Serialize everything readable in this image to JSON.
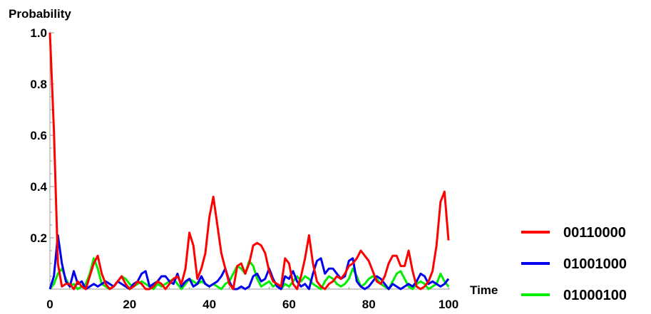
{
  "chart_data": {
    "type": "line",
    "title": "",
    "xlabel": "Time",
    "ylabel": "Probability",
    "xlim": [
      0,
      100
    ],
    "ylim": [
      0,
      1.0
    ],
    "x_ticks": [
      "0",
      "20",
      "40",
      "60",
      "80",
      "100"
    ],
    "y_ticks": [
      "0.2",
      "0.4",
      "0.6",
      "0.8",
      "1.0"
    ],
    "grid": false,
    "legend_position": "bottom-right",
    "x": [
      0,
      1,
      2,
      3,
      4,
      5,
      6,
      7,
      8,
      9,
      10,
      11,
      12,
      13,
      14,
      15,
      16,
      17,
      18,
      19,
      20,
      21,
      22,
      23,
      24,
      25,
      26,
      27,
      28,
      29,
      30,
      31,
      32,
      33,
      34,
      35,
      36,
      37,
      38,
      39,
      40,
      41,
      42,
      43,
      44,
      45,
      46,
      47,
      48,
      49,
      50,
      51,
      52,
      53,
      54,
      55,
      56,
      57,
      58,
      59,
      60,
      61,
      62,
      63,
      64,
      65,
      66,
      67,
      68,
      69,
      70,
      71,
      72,
      73,
      74,
      75,
      76,
      77,
      78,
      79,
      80,
      81,
      82,
      83,
      84,
      85,
      86,
      87,
      88,
      89,
      90,
      91,
      92,
      93,
      94,
      95,
      96,
      97,
      98,
      99,
      100
    ],
    "series": [
      {
        "name": "00110000",
        "color": "#ff0000",
        "values": [
          1.0,
          0.62,
          0.1,
          0.01,
          0.02,
          0.02,
          0.0,
          0.03,
          0.01,
          0.0,
          0.05,
          0.1,
          0.13,
          0.06,
          0.02,
          0.0,
          0.01,
          0.03,
          0.05,
          0.02,
          0.0,
          0.01,
          0.03,
          0.02,
          0.0,
          0.0,
          0.01,
          0.03,
          0.02,
          0.0,
          0.02,
          0.04,
          0.05,
          0.02,
          0.08,
          0.22,
          0.17,
          0.04,
          0.08,
          0.14,
          0.28,
          0.36,
          0.25,
          0.14,
          0.08,
          0.02,
          0.0,
          0.09,
          0.1,
          0.06,
          0.1,
          0.17,
          0.18,
          0.17,
          0.14,
          0.07,
          0.03,
          0.02,
          0.01,
          0.12,
          0.1,
          0.02,
          0.0,
          0.05,
          0.12,
          0.21,
          0.1,
          0.03,
          0.01,
          0.0,
          0.02,
          0.03,
          0.05,
          0.04,
          0.06,
          0.09,
          0.1,
          0.12,
          0.15,
          0.13,
          0.11,
          0.07,
          0.03,
          0.02,
          0.05,
          0.1,
          0.13,
          0.13,
          0.09,
          0.09,
          0.15,
          0.07,
          0.01,
          0.0,
          0.01,
          0.03,
          0.07,
          0.17,
          0.34,
          0.38,
          0.19
        ]
      },
      {
        "name": "01001000",
        "color": "#0000ee",
        "values": [
          0.0,
          0.05,
          0.21,
          0.1,
          0.03,
          0.01,
          0.07,
          0.02,
          0.03,
          0.0,
          0.01,
          0.02,
          0.01,
          0.02,
          0.03,
          0.02,
          0.01,
          0.03,
          0.02,
          0.01,
          0.0,
          0.02,
          0.03,
          0.06,
          0.07,
          0.01,
          0.02,
          0.03,
          0.05,
          0.05,
          0.03,
          0.02,
          0.06,
          0.01,
          0.03,
          0.04,
          0.01,
          0.02,
          0.05,
          0.02,
          0.01,
          0.02,
          0.03,
          0.05,
          0.08,
          0.03,
          0.0,
          0.0,
          0.01,
          0.0,
          0.01,
          0.05,
          0.06,
          0.03,
          0.04,
          0.08,
          0.04,
          0.01,
          0.0,
          0.05,
          0.04,
          0.07,
          0.03,
          0.01,
          0.02,
          0.0,
          0.06,
          0.11,
          0.12,
          0.06,
          0.08,
          0.08,
          0.06,
          0.04,
          0.05,
          0.11,
          0.12,
          0.03,
          0.01,
          0.0,
          0.01,
          0.03,
          0.05,
          0.04,
          0.02,
          0.0,
          0.02,
          0.01,
          0.0,
          0.01,
          0.02,
          0.01,
          0.03,
          0.06,
          0.05,
          0.02,
          0.03,
          0.02,
          0.01,
          0.02,
          0.04
        ]
      },
      {
        "name": "01000100",
        "color": "#00ee00",
        "values": [
          0.0,
          0.02,
          0.06,
          0.08,
          0.04,
          0.01,
          0.02,
          0.0,
          0.01,
          0.02,
          0.06,
          0.12,
          0.08,
          0.02,
          0.01,
          0.0,
          0.01,
          0.03,
          0.05,
          0.04,
          0.02,
          0.01,
          0.02,
          0.03,
          0.02,
          0.01,
          0.0,
          0.02,
          0.01,
          0.02,
          0.03,
          0.04,
          0.02,
          0.0,
          0.02,
          0.04,
          0.03,
          0.02,
          0.03,
          0.02,
          0.01,
          0.02,
          0.01,
          0.0,
          0.02,
          0.03,
          0.06,
          0.09,
          0.08,
          0.06,
          0.11,
          0.09,
          0.04,
          0.01,
          0.02,
          0.03,
          0.01,
          0.02,
          0.0,
          0.02,
          0.01,
          0.03,
          0.05,
          0.03,
          0.05,
          0.04,
          0.02,
          0.01,
          0.0,
          0.03,
          0.05,
          0.04,
          0.02,
          0.01,
          0.02,
          0.04,
          0.08,
          0.05,
          0.01,
          0.02,
          0.04,
          0.05,
          0.04,
          0.02,
          0.01,
          0.0,
          0.03,
          0.06,
          0.07,
          0.04,
          0.01,
          0.0,
          0.02,
          0.03,
          0.02,
          0.0,
          0.01,
          0.02,
          0.06,
          0.03,
          0.01
        ]
      }
    ]
  }
}
